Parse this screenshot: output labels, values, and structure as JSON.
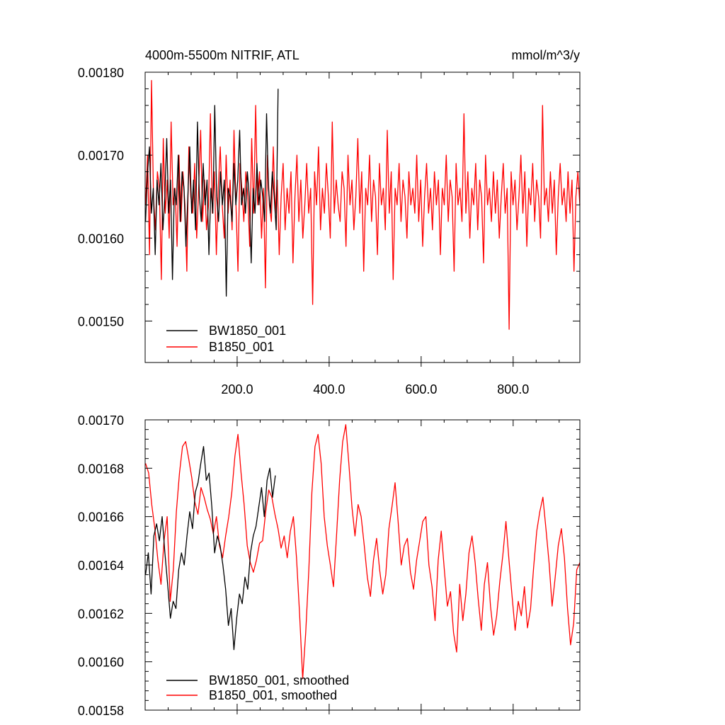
{
  "chart_data": [
    {
      "type": "line",
      "title": "4000m-5500m NITRIF, ATL",
      "units_label": "mmol/m^3/y",
      "xlim": [
        0,
        945
      ],
      "ylim": [
        0.00145,
        0.0018
      ],
      "xticks": [
        200,
        400,
        600,
        800
      ],
      "xtick_labels": [
        "200.0",
        "400.0",
        "600.0",
        "800.0"
      ],
      "yticks": [
        0.0015,
        0.0016,
        0.0017,
        0.0018
      ],
      "ytick_labels": [
        "0.00150",
        "0.00160",
        "0.00170",
        "0.00180"
      ],
      "legend_position": "bottom-left",
      "series": [
        {
          "name": "BW1850_001",
          "color": "#000000",
          "x_range": [
            1,
            289
          ],
          "values": [
            0.00162,
            0.00168,
            0.00171,
            0.00163,
            0.00166,
            0.00158,
            0.00167,
            0.00164,
            0.00169,
            0.00161,
            0.00165,
            0.00172,
            0.00163,
            0.00167,
            0.00155,
            0.00166,
            0.00164,
            0.0017,
            0.00162,
            0.00168,
            0.00166,
            0.00159,
            0.00165,
            0.00171,
            0.00163,
            0.00167,
            0.00161,
            0.00174,
            0.00165,
            0.00162,
            0.00169,
            0.00164,
            0.00167,
            0.00158,
            0.00166,
            0.00163,
            0.00176,
            0.00165,
            0.00162,
            0.00168,
            0.00164,
            0.00167,
            0.00153,
            0.00166,
            0.00165,
            0.00162,
            0.00169,
            0.00164,
            0.00167,
            0.00173,
            0.00164,
            0.00166,
            0.00163,
            0.00168,
            0.00165,
            0.00157,
            0.00166,
            0.00163,
            0.00169,
            0.00164,
            0.00167,
            0.00165,
            0.00162,
            0.00175,
            0.00166,
            0.00163,
            0.00168,
            0.00165,
            0.00161,
            0.00178
          ]
        },
        {
          "name": "B1850_001",
          "color": "#ff0000",
          "x_range": [
            1,
            945
          ],
          "values": [
            0.00164,
            0.0017,
            0.00158,
            0.00179,
            0.00165,
            0.00161,
            0.00168,
            0.00166,
            0.00155,
            0.00172,
            0.00163,
            0.00167,
            0.0016,
            0.00174,
            0.00164,
            0.00166,
            0.00159,
            0.0017,
            0.00162,
            0.00168,
            0.00164,
            0.00156,
            0.00171,
            0.00165,
            0.00163,
            0.00169,
            0.0016,
            0.00166,
            0.00173,
            0.00162,
            0.00167,
            0.00161,
            0.00164,
            0.00175,
            0.00163,
            0.00168,
            0.00158,
            0.00166,
            0.00171,
            0.00164,
            0.0016,
            0.0017,
            0.00163,
            0.00167,
            0.00161,
            0.00173,
            0.00164,
            0.00156,
            0.00169,
            0.00166,
            0.00162,
            0.00168,
            0.00165,
            0.00159,
            0.00172,
            0.00163,
            0.00176,
            0.00164,
            0.00168,
            0.0016,
            0.00166,
            0.00154,
            0.0017,
            0.00164,
            0.00162,
            0.00171,
            0.00163,
            0.00167,
            0.00158,
            0.00165,
            0.00169,
            0.00161,
            0.00166,
            0.00163,
            0.00168,
            0.00157,
            0.00165,
            0.0017,
            0.00162,
            0.00167,
            0.0016,
            0.00164,
            0.00169,
            0.00163,
            0.00166,
            0.00152,
            0.00168,
            0.00164,
            0.00171,
            0.00161,
            0.00166,
            0.00163,
            0.00169,
            0.00165,
            0.0016,
            0.00174,
            0.00163,
            0.00167,
            0.00164,
            0.00162,
            0.00168,
            0.00166,
            0.00159,
            0.0017,
            0.00164,
            0.00167,
            0.00161,
            0.00165,
            0.00172,
            0.00163,
            0.00168,
            0.00156,
            0.00166,
            0.00164,
            0.0017,
            0.00162,
            0.00167,
            0.00165,
            0.00158,
            0.00169,
            0.00164,
            0.00166,
            0.00161,
            0.00173,
            0.00163,
            0.00168,
            0.00155,
            0.00166,
            0.00164,
            0.00169,
            0.00162,
            0.00167,
            0.00165,
            0.0016,
            0.00168,
            0.00164,
            0.00166,
            0.00163,
            0.0017,
            0.00162,
            0.00167,
            0.00159,
            0.00165,
            0.00169,
            0.00163,
            0.00166,
            0.00161,
            0.00168,
            0.00164,
            0.00167,
            0.00158,
            0.00166,
            0.00164,
            0.0017,
            0.00162,
            0.00167,
            0.00165,
            0.00156,
            0.00169,
            0.00164,
            0.00166,
            0.00162,
            0.00175,
            0.00163,
            0.00168,
            0.0016,
            0.00166,
            0.00164,
            0.00169,
            0.00161,
            0.00167,
            0.00165,
            0.00157,
            0.0017,
            0.00164,
            0.00166,
            0.00162,
            0.00168,
            0.00163,
            0.00167,
            0.0016,
            0.00165,
            0.00169,
            0.00163,
            0.00166,
            0.00149,
            0.00168,
            0.00164,
            0.00167,
            0.00161,
            0.00165,
            0.0017,
            0.00163,
            0.00168,
            0.00159,
            0.00166,
            0.00164,
            0.00169,
            0.00162,
            0.00167,
            0.00165,
            0.0016,
            0.00176,
            0.00164,
            0.00166,
            0.00162,
            0.00168,
            0.00163,
            0.00167,
            0.00158,
            0.00165,
            0.00169,
            0.00164,
            0.00166,
            0.00162,
            0.00168,
            0.00163,
            0.00167,
            0.00156,
            0.00165,
            0.00168,
            0.00164
          ]
        }
      ]
    },
    {
      "type": "line",
      "xlim": [
        0,
        945
      ],
      "ylim": [
        0.00158,
        0.0017
      ],
      "xticks": [
        200,
        400,
        600,
        800
      ],
      "yticks": [
        0.00158,
        0.0016,
        0.00162,
        0.00164,
        0.00166,
        0.00168,
        0.0017
      ],
      "ytick_labels": [
        "0.00158",
        "0.00160",
        "0.00162",
        "0.00164",
        "0.00166",
        "0.00168",
        "0.00170"
      ],
      "legend_position": "bottom-left",
      "series": [
        {
          "name": "BW1850_001, smoothed",
          "color": "#000000",
          "x_range": [
            1,
            283
          ],
          "values": [
            0.001636,
            0.001645,
            0.001628,
            0.001652,
            0.001657,
            0.00165,
            0.00166,
            0.001645,
            0.001632,
            0.001618,
            0.001625,
            0.001622,
            0.001638,
            0.001645,
            0.00164,
            0.001652,
            0.001662,
            0.001655,
            0.00167,
            0.001674,
            0.001682,
            0.001689,
            0.001675,
            0.001678,
            0.001664,
            0.001645,
            0.001652,
            0.001648,
            0.00164,
            0.00163,
            0.001615,
            0.001622,
            0.001605,
            0.001618,
            0.001628,
            0.001624,
            0.001635,
            0.00163,
            0.001645,
            0.001652,
            0.001656,
            0.001664,
            0.001672,
            0.00166,
            0.001675,
            0.00168,
            0.001668,
            0.001677
          ]
        },
        {
          "name": "B1850_001, smoothed",
          "color": "#ff0000",
          "x_range": [
            1,
            945
          ],
          "values": [
            0.001682,
            0.001678,
            0.001665,
            0.001655,
            0.001642,
            0.001632,
            0.00165,
            0.00166,
            0.001625,
            0.001638,
            0.001662,
            0.001678,
            0.001689,
            0.001691,
            0.001684,
            0.001676,
            0.001666,
            0.001661,
            0.001672,
            0.001668,
            0.001663,
            0.001659,
            0.001653,
            0.00166,
            0.001648,
            0.001643,
            0.001652,
            0.00166,
            0.00167,
            0.001685,
            0.001694,
            0.001678,
            0.001665,
            0.001648,
            0.001641,
            0.001637,
            0.001642,
            0.001649,
            0.00165,
            0.001662,
            0.001671,
            0.001668,
            0.001661,
            0.001655,
            0.001647,
            0.001652,
            0.001643,
            0.001654,
            0.00166,
            0.001643,
            0.00162,
            0.001593,
            0.001612,
            0.001638,
            0.00167,
            0.001689,
            0.001694,
            0.001682,
            0.00166,
            0.001648,
            0.00164,
            0.001631,
            0.001652,
            0.001675,
            0.001691,
            0.001698,
            0.001682,
            0.001664,
            0.001652,
            0.001665,
            0.00166,
            0.001648,
            0.001635,
            0.001627,
            0.001642,
            0.001651,
            0.001638,
            0.001628,
            0.001636,
            0.001655,
            0.001664,
            0.001674,
            0.001658,
            0.00164,
            0.001648,
            0.001651,
            0.001637,
            0.00163,
            0.001642,
            0.00165,
            0.001658,
            0.00166,
            0.00164,
            0.001631,
            0.001617,
            0.001642,
            0.001654,
            0.001638,
            0.001623,
            0.001629,
            0.001612,
            0.001604,
            0.001632,
            0.001617,
            0.001628,
            0.001645,
            0.001652,
            0.001641,
            0.001626,
            0.001613,
            0.001632,
            0.001641,
            0.001623,
            0.001611,
            0.001619,
            0.001633,
            0.001644,
            0.001658,
            0.001642,
            0.001627,
            0.001613,
            0.001625,
            0.001619,
            0.001631,
            0.001614,
            0.001622,
            0.001639,
            0.001654,
            0.001662,
            0.001668,
            0.001655,
            0.001641,
            0.001623,
            0.001635,
            0.001648,
            0.001655,
            0.001643,
            0.001622,
            0.001607,
            0.001616,
            0.001638,
            0.001641
          ]
        }
      ]
    }
  ]
}
